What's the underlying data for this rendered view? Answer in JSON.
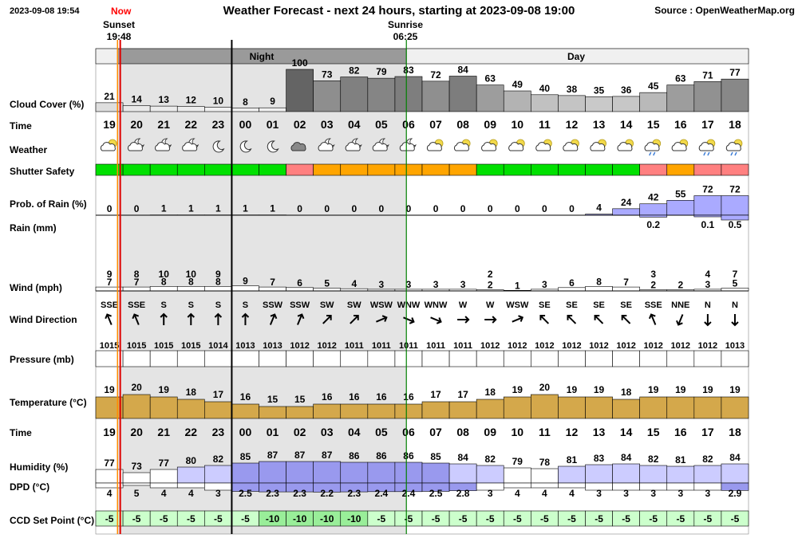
{
  "header": {
    "timestamp": "2023-09-08 19:54",
    "now_label": "Now",
    "title": "Weather Forecast - next 24 hours, starting at 2023-09-08 19:00",
    "source": "Source : OpenWeatherMap.org",
    "sunset_label": "Sunset",
    "sunset_time": "19:48",
    "sunrise_label": "Sunrise",
    "sunrise_time": "06:25",
    "night_label": "Night",
    "day_label": "Day"
  },
  "row_labels": {
    "cloud": "Cloud Cover (%)",
    "time": "Time",
    "weather": "Weather",
    "shutter": "Shutter Safety",
    "prob_rain": "Prob. of Rain (%)",
    "rain": "Rain (mm)",
    "wind": "Wind (mph)",
    "wind_dir": "Wind Direction",
    "pressure": "Pressure (mb)",
    "temperature": "Temperature (°C)",
    "time2": "Time",
    "humidity": "Humidity (%)",
    "dpd": "DPD (°C)",
    "ccd": "CCD Set Point (°C)"
  },
  "colors": {
    "night_shade": "#e4e4e4",
    "day_header": "#f0f0f0",
    "night_header": "#9a9a9a",
    "shutter_safe": "#00e000",
    "shutter_caution": "#ffa500",
    "shutter_unsafe": "#ff8080",
    "rain_bar": "#aaaaff",
    "temperature_bar": "#d4a84b",
    "humidity_bar": "#ccccff",
    "dpd_bar": "#9999ee",
    "ccd_fill": "#ccffcc",
    "now_line": "#dd0000",
    "sunset_line": "#ff8c00",
    "sunrise_line": "#008000"
  },
  "chart_data": {
    "type": "table",
    "hours": [
      "19",
      "20",
      "21",
      "22",
      "23",
      "00",
      "01",
      "02",
      "03",
      "04",
      "05",
      "06",
      "07",
      "08",
      "09",
      "10",
      "11",
      "12",
      "13",
      "14",
      "15",
      "16",
      "17",
      "18"
    ],
    "cloud_cover": [
      21,
      14,
      13,
      12,
      10,
      8,
      9,
      100,
      73,
      82,
      79,
      83,
      72,
      84,
      63,
      49,
      40,
      38,
      35,
      36,
      45,
      63,
      71,
      77
    ],
    "weather_icons": [
      "partly-cloudy-day-icon",
      "partly-cloudy-night-icon",
      "partly-cloudy-night-icon",
      "partly-cloudy-night-icon",
      "moon-icon",
      "moon-icon",
      "moon-icon",
      "cloud-icon",
      "partly-cloudy-night-icon",
      "partly-cloudy-night-icon",
      "partly-cloudy-night-icon",
      "partly-cloudy-night-icon",
      "partly-cloudy-day-icon",
      "partly-cloudy-day-icon",
      "partly-cloudy-day-icon",
      "partly-cloudy-day-icon",
      "partly-cloudy-day-icon",
      "partly-cloudy-day-icon",
      "partly-cloudy-day-icon",
      "partly-cloudy-day-icon",
      "rain-day-icon",
      "partly-cloudy-day-icon",
      "rain-day-icon",
      "rain-day-icon"
    ],
    "shutter_safety": [
      "safe",
      "safe",
      "safe",
      "safe",
      "safe",
      "safe",
      "safe",
      "unsafe",
      "caution",
      "caution",
      "caution",
      "caution",
      "caution",
      "caution",
      "safe",
      "safe",
      "safe",
      "safe",
      "safe",
      "safe",
      "unsafe",
      "caution",
      "unsafe",
      "unsafe"
    ],
    "prob_rain": [
      0,
      0,
      1,
      1,
      1,
      1,
      1,
      0,
      0,
      0,
      0,
      0,
      0,
      0,
      0,
      0,
      0,
      0,
      4,
      24,
      42,
      55,
      72,
      72
    ],
    "rain_mm": [
      null,
      null,
      null,
      null,
      null,
      null,
      null,
      null,
      null,
      null,
      null,
      null,
      null,
      null,
      null,
      null,
      null,
      null,
      null,
      null,
      0.2,
      null,
      0.1,
      0.5
    ],
    "wind_gust": [
      9,
      8,
      10,
      10,
      9,
      null,
      null,
      null,
      null,
      null,
      null,
      null,
      null,
      null,
      2,
      null,
      null,
      null,
      null,
      null,
      3,
      null,
      4,
      7
    ],
    "wind_speed": [
      7,
      7,
      8,
      8,
      8,
      9,
      7,
      6,
      5,
      4,
      3,
      3,
      3,
      3,
      2,
      1,
      3,
      6,
      8,
      7,
      2,
      2,
      3,
      5
    ],
    "wind_direction": [
      "SSE",
      "SSE",
      "S",
      "S",
      "S",
      "S",
      "SSW",
      "SSW",
      "SW",
      "SW",
      "WSW",
      "WNW",
      "WNW",
      "W",
      "W",
      "WSW",
      "SE",
      "SE",
      "SE",
      "SE",
      "SSE",
      "NNE",
      "N",
      "N"
    ],
    "pressure": [
      1015,
      1015,
      1015,
      1015,
      1014,
      1013,
      1013,
      1012,
      1012,
      1011,
      1011,
      1011,
      1011,
      1011,
      1012,
      1012,
      1012,
      1012,
      1012,
      1012,
      1012,
      1012,
      1012,
      1013
    ],
    "temperature": [
      19,
      20,
      19,
      18,
      17,
      16,
      15,
      15,
      16,
      16,
      16,
      16,
      17,
      17,
      18,
      19,
      20,
      19,
      19,
      18,
      19,
      19,
      19,
      19
    ],
    "humidity": [
      77,
      73,
      77,
      80,
      82,
      85,
      87,
      87,
      87,
      86,
      86,
      86,
      85,
      84,
      82,
      79,
      78,
      81,
      83,
      84,
      82,
      81,
      82,
      84
    ],
    "dpd": [
      "4",
      "5",
      "4",
      "4",
      "3",
      "2.5",
      "2.3",
      "2.3",
      "2.2",
      "2.3",
      "2.4",
      "2.4",
      "2.5",
      "2.8",
      "3",
      "4",
      "4",
      "4",
      "3",
      "3",
      "3",
      "3",
      "3",
      "2.9"
    ],
    "ccd_set_point": [
      -5,
      -5,
      -5,
      -5,
      -5,
      -5,
      -10,
      -10,
      -10,
      -10,
      -5,
      -5,
      -5,
      -5,
      -5,
      -5,
      -5,
      -5,
      -5,
      -5,
      -5,
      -5,
      -5,
      -5
    ]
  }
}
